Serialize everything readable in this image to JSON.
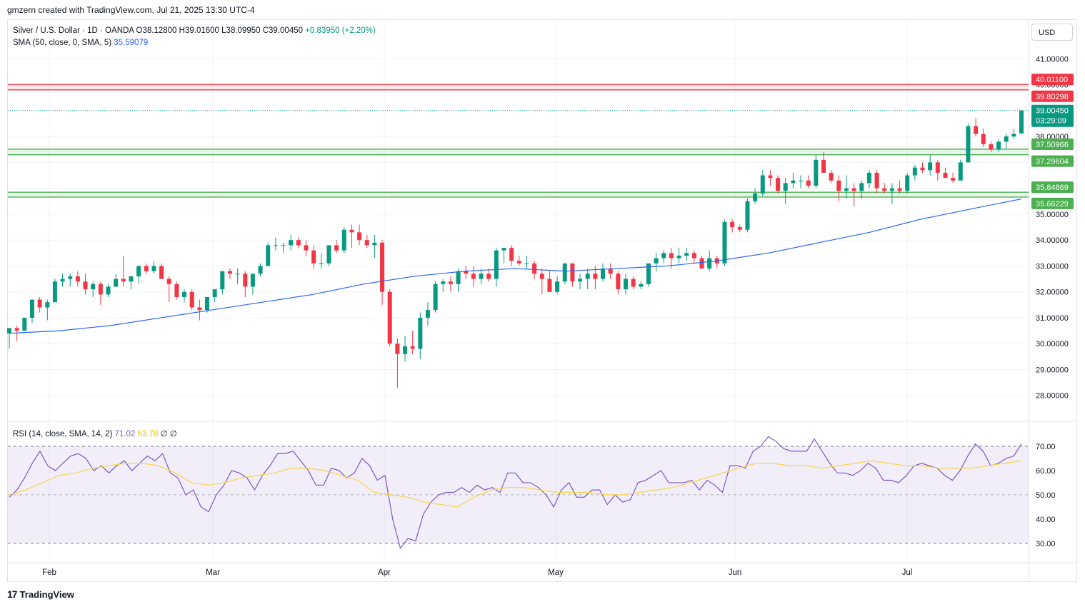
{
  "header": {
    "created": "gmzern created with TradingView.com, Jul 21, 2025 13:30 UTC-4"
  },
  "legend": {
    "symbol": "Silver / U.S. Dollar · 1D · OANDA",
    "open": "O38.12800",
    "high": "H39.01600",
    "low": "L38.09950",
    "close": "C39.00450",
    "change": "+0.83950 (+2.20%)",
    "sma_label": "SMA (50, close, 0, SMA, 5)",
    "sma_value": "35.59079",
    "rsi_label": "RSI (14, close, SMA, 14, 2)",
    "rsi_value": "71.02",
    "rsi_sma_value": "63.78",
    "rsi_extra": "∅ ∅"
  },
  "currency_button": "USD",
  "footer": {
    "brand": "TradingView",
    "logo_glyph": "17"
  },
  "colors": {
    "up": "#089981",
    "down": "#f23645",
    "sma": "#2962ff",
    "rsi": "#7e57c2",
    "rsi_sma": "#f7d54a",
    "zone_red": "#f23645",
    "zone_green": "#4caf50"
  },
  "chart_data": [
    {
      "type": "candlestick",
      "title": "Silver / U.S. Dollar · 1D · OANDA",
      "y_ticks": [
        "28.00000",
        "29.00000",
        "30.00000",
        "31.00000",
        "32.00000",
        "33.00000",
        "34.00000",
        "35.00000",
        "36.00000",
        "37.00000",
        "38.00000",
        "39.00000",
        "40.00000",
        "41.00000"
      ],
      "x_labels": [
        "Feb",
        "Mar",
        "Apr",
        "May",
        "Jun",
        "Jul"
      ],
      "ylim": [
        27.0,
        42.5
      ],
      "zones": [
        {
          "top": 40.011,
          "bottom": 39.80298,
          "color": "red",
          "labels": [
            "40.01100",
            "39.80298"
          ]
        },
        {
          "top": 37.50966,
          "bottom": 37.29604,
          "color": "green",
          "labels": [
            "37.50966",
            "37.29604"
          ]
        },
        {
          "top": 35.84869,
          "bottom": 35.66229,
          "color": "green",
          "labels": [
            "35.84869",
            "35.66229"
          ]
        }
      ],
      "last_price": {
        "value": 39.0045,
        "label": "39.00450",
        "countdown": "03:29:09"
      },
      "candles": [
        [
          30.4,
          30.6,
          29.8,
          30.6
        ],
        [
          30.6,
          30.7,
          30.1,
          30.5
        ],
        [
          30.5,
          31.0,
          30.5,
          31.0
        ],
        [
          31.0,
          31.7,
          30.8,
          31.7
        ],
        [
          31.7,
          31.8,
          31.2,
          31.4
        ],
        [
          31.4,
          31.7,
          30.9,
          31.6
        ],
        [
          31.6,
          32.5,
          31.6,
          32.4
        ],
        [
          32.4,
          32.7,
          32.2,
          32.5
        ],
        [
          32.5,
          32.7,
          32.2,
          32.6
        ],
        [
          32.6,
          32.8,
          32.2,
          32.4
        ],
        [
          32.4,
          32.7,
          31.9,
          32.1
        ],
        [
          32.1,
          32.4,
          31.8,
          32.3
        ],
        [
          32.3,
          32.4,
          31.5,
          31.9
        ],
        [
          31.9,
          32.3,
          31.8,
          32.2
        ],
        [
          32.2,
          32.7,
          32.2,
          32.5
        ],
        [
          32.5,
          33.4,
          32.2,
          32.4
        ],
        [
          32.4,
          32.6,
          32.1,
          32.6
        ],
        [
          32.6,
          33.0,
          32.3,
          33.0
        ],
        [
          33.0,
          33.1,
          32.7,
          32.8
        ],
        [
          32.8,
          33.2,
          32.7,
          33.0
        ],
        [
          33.0,
          33.1,
          32.5,
          32.5
        ],
        [
          32.5,
          32.6,
          31.6,
          32.3
        ],
        [
          32.3,
          32.4,
          31.7,
          31.8
        ],
        [
          31.8,
          32.1,
          31.6,
          32.0
        ],
        [
          32.0,
          32.1,
          31.3,
          31.4
        ],
        [
          31.4,
          31.7,
          30.9,
          31.3
        ],
        [
          31.3,
          31.8,
          31.2,
          31.8
        ],
        [
          31.8,
          32.1,
          31.6,
          32.1
        ],
        [
          32.1,
          32.8,
          31.9,
          32.8
        ],
        [
          32.8,
          32.9,
          32.5,
          32.7
        ],
        [
          32.7,
          32.9,
          32.3,
          32.7
        ],
        [
          32.7,
          32.8,
          31.8,
          32.2
        ],
        [
          32.2,
          32.6,
          31.9,
          32.7
        ],
        [
          32.7,
          33.1,
          32.6,
          33.0
        ],
        [
          33.0,
          33.9,
          33.0,
          33.8
        ],
        [
          33.8,
          34.1,
          33.6,
          33.8
        ],
        [
          33.8,
          33.9,
          33.5,
          33.8
        ],
        [
          33.8,
          34.2,
          33.6,
          34.0
        ],
        [
          34.0,
          34.1,
          33.7,
          33.8
        ],
        [
          33.8,
          34.0,
          33.4,
          33.6
        ],
        [
          33.6,
          33.8,
          32.9,
          33.1
        ],
        [
          33.1,
          33.5,
          32.9,
          33.1
        ],
        [
          33.1,
          33.8,
          33.0,
          33.8
        ],
        [
          33.8,
          34.0,
          33.5,
          33.6
        ],
        [
          33.6,
          34.5,
          33.5,
          34.4
        ],
        [
          34.4,
          34.6,
          33.7,
          34.3
        ],
        [
          34.3,
          34.6,
          33.8,
          34.0
        ],
        [
          34.0,
          34.2,
          33.7,
          33.8
        ],
        [
          33.8,
          34.2,
          33.3,
          33.9
        ],
        [
          33.9,
          34.0,
          31.5,
          32.0
        ],
        [
          32.0,
          32.1,
          29.9,
          30.0
        ],
        [
          30.0,
          30.2,
          28.3,
          29.6
        ],
        [
          29.6,
          30.3,
          29.3,
          29.9
        ],
        [
          29.9,
          30.5,
          29.6,
          29.8
        ],
        [
          29.8,
          31.2,
          29.4,
          31.0
        ],
        [
          31.0,
          31.6,
          30.7,
          31.3
        ],
        [
          31.3,
          32.4,
          31.2,
          32.3
        ],
        [
          32.3,
          32.5,
          32.0,
          32.4
        ],
        [
          32.4,
          32.6,
          32.0,
          32.3
        ],
        [
          32.3,
          32.9,
          32.0,
          32.8
        ],
        [
          32.8,
          33.0,
          32.5,
          32.7
        ],
        [
          32.7,
          33.0,
          32.2,
          32.5
        ],
        [
          32.5,
          32.9,
          32.3,
          32.7
        ],
        [
          32.7,
          32.9,
          32.4,
          32.5
        ],
        [
          32.5,
          33.7,
          32.2,
          33.6
        ],
        [
          33.6,
          33.7,
          33.1,
          33.7
        ],
        [
          33.7,
          33.8,
          33.0,
          33.2
        ],
        [
          33.2,
          33.4,
          33.0,
          33.1
        ],
        [
          33.1,
          33.4,
          32.9,
          33.1
        ],
        [
          33.1,
          33.2,
          32.5,
          32.7
        ],
        [
          32.7,
          32.9,
          31.9,
          32.5
        ],
        [
          32.5,
          32.8,
          32.0,
          32.0
        ],
        [
          32.0,
          32.6,
          31.9,
          32.4
        ],
        [
          32.4,
          33.1,
          32.3,
          33.1
        ],
        [
          33.1,
          33.1,
          32.2,
          32.4
        ],
        [
          32.4,
          32.7,
          32.1,
          32.5
        ],
        [
          32.5,
          32.9,
          32.1,
          32.7
        ],
        [
          32.7,
          33.0,
          32.1,
          32.5
        ],
        [
          32.5,
          33.1,
          32.4,
          32.9
        ],
        [
          32.9,
          33.1,
          32.5,
          32.7
        ],
        [
          32.7,
          32.8,
          31.9,
          32.1
        ],
        [
          32.1,
          32.7,
          31.9,
          32.5
        ],
        [
          32.5,
          32.6,
          32.1,
          32.2
        ],
        [
          32.2,
          32.4,
          32.1,
          32.3
        ],
        [
          32.3,
          33.1,
          32.2,
          33.1
        ],
        [
          33.1,
          33.5,
          32.8,
          33.3
        ],
        [
          33.3,
          33.6,
          33.1,
          33.5
        ],
        [
          33.5,
          33.7,
          32.9,
          33.3
        ],
        [
          33.3,
          33.7,
          33.1,
          33.4
        ],
        [
          33.4,
          33.7,
          33.2,
          33.5
        ],
        [
          33.5,
          33.6,
          33.1,
          33.3
        ],
        [
          33.3,
          33.4,
          32.9,
          32.9
        ],
        [
          32.9,
          33.6,
          32.8,
          33.3
        ],
        [
          33.3,
          33.4,
          32.9,
          33.1
        ],
        [
          33.1,
          34.8,
          33.0,
          34.7
        ],
        [
          34.7,
          34.8,
          34.3,
          34.5
        ],
        [
          34.5,
          34.6,
          34.3,
          34.4
        ],
        [
          34.4,
          35.6,
          34.3,
          35.5
        ],
        [
          35.5,
          36.0,
          35.4,
          35.8
        ],
        [
          35.8,
          36.7,
          35.7,
          36.5
        ],
        [
          36.5,
          36.7,
          36.1,
          36.4
        ],
        [
          36.4,
          36.5,
          35.8,
          35.9
        ],
        [
          35.9,
          36.4,
          35.4,
          36.2
        ],
        [
          36.2,
          36.6,
          36.0,
          36.3
        ],
        [
          36.3,
          36.5,
          36.0,
          36.3
        ],
        [
          36.3,
          36.5,
          36.0,
          36.1
        ],
        [
          36.1,
          37.3,
          36.0,
          37.1
        ],
        [
          37.1,
          37.4,
          36.6,
          36.6
        ],
        [
          36.6,
          36.7,
          36.2,
          36.3
        ],
        [
          36.3,
          36.5,
          35.5,
          35.9
        ],
        [
          35.9,
          36.5,
          35.6,
          36.0
        ],
        [
          36.0,
          36.2,
          35.3,
          35.9
        ],
        [
          35.9,
          36.3,
          35.6,
          36.2
        ],
        [
          36.2,
          36.7,
          36.0,
          36.6
        ],
        [
          36.6,
          36.7,
          35.8,
          36.0
        ],
        [
          36.0,
          36.2,
          35.8,
          35.9
        ],
        [
          35.9,
          36.2,
          35.4,
          36.0
        ],
        [
          36.0,
          36.3,
          35.8,
          35.9
        ],
        [
          35.9,
          36.6,
          35.8,
          36.5
        ],
        [
          36.5,
          36.9,
          36.3,
          36.8
        ],
        [
          36.8,
          37.0,
          36.6,
          36.7
        ],
        [
          36.7,
          37.3,
          36.5,
          37.0
        ],
        [
          37.0,
          37.1,
          36.3,
          36.6
        ],
        [
          36.6,
          36.8,
          36.4,
          36.4
        ],
        [
          36.4,
          36.6,
          36.2,
          36.3
        ],
        [
          36.3,
          37.1,
          36.3,
          37.0
        ],
        [
          37.0,
          38.5,
          37.0,
          38.4
        ],
        [
          38.4,
          38.7,
          38.0,
          38.1
        ],
        [
          38.1,
          38.3,
          37.6,
          37.7
        ],
        [
          37.7,
          37.8,
          37.4,
          37.5
        ],
        [
          37.5,
          37.9,
          37.4,
          37.8
        ],
        [
          37.8,
          38.1,
          37.5,
          38.0
        ],
        [
          38.0,
          38.3,
          37.9,
          38.1
        ],
        [
          38.12,
          39.016,
          38.0995,
          39.0045
        ]
      ],
      "sma_50": [
        30.4,
        30.5,
        30.7,
        31.0,
        31.3,
        31.6,
        31.9,
        32.3,
        32.6,
        32.8,
        32.9,
        32.8,
        32.9,
        33.0,
        33.2,
        33.5,
        33.9,
        34.3,
        34.8,
        35.2,
        35.59
      ]
    },
    {
      "type": "line",
      "title": "RSI (14, close, SMA, 14, 2)",
      "y_ticks": [
        "30.00",
        "40.00",
        "50.00",
        "60.00",
        "70.00"
      ],
      "ylim": [
        22,
        80
      ],
      "bands": {
        "upper": 70,
        "middle": 50,
        "lower": 30
      },
      "series": [
        {
          "name": "RSI",
          "values": [
            49,
            52,
            57,
            63,
            68,
            62,
            60,
            63,
            66,
            67,
            65,
            60,
            62,
            59,
            62,
            64,
            60,
            63,
            66,
            64,
            67,
            59,
            57,
            50,
            52,
            45,
            43,
            50,
            54,
            60,
            59,
            57,
            52,
            58,
            62,
            67,
            67,
            68,
            64,
            60,
            54,
            54,
            61,
            60,
            57,
            59,
            65,
            62,
            56,
            58,
            40,
            28,
            32,
            31,
            42,
            47,
            50,
            51,
            51,
            53,
            51,
            54,
            52,
            53,
            51,
            59,
            59,
            55,
            55,
            53,
            50,
            45,
            52,
            55,
            49,
            49,
            52,
            52,
            46,
            50,
            47,
            48,
            55,
            56,
            58,
            60,
            55,
            55,
            55,
            56,
            52,
            56,
            54,
            51,
            62,
            62,
            61,
            68,
            70,
            74,
            72,
            69,
            68,
            68,
            68,
            73,
            68,
            63,
            59,
            59,
            58,
            60,
            63,
            61,
            56,
            56,
            55,
            58,
            62,
            63,
            62,
            61,
            58,
            56,
            60,
            66,
            71,
            68,
            62,
            63,
            65,
            66,
            71
          ]
        },
        {
          "name": "SMA",
          "values": [
            50,
            52,
            55,
            58,
            59,
            61,
            62,
            63,
            63,
            62,
            59,
            55,
            54,
            55,
            57,
            58,
            59,
            61,
            61,
            60,
            58,
            56,
            51,
            50,
            49,
            47,
            46,
            45,
            49,
            52,
            53,
            53,
            52,
            51,
            51,
            51,
            50,
            50,
            51,
            52,
            53,
            55,
            57,
            59,
            61,
            63,
            63,
            62,
            62,
            61,
            62,
            63,
            64,
            63,
            62,
            62,
            61,
            61,
            61,
            62,
            63,
            64
          ]
        }
      ]
    }
  ]
}
